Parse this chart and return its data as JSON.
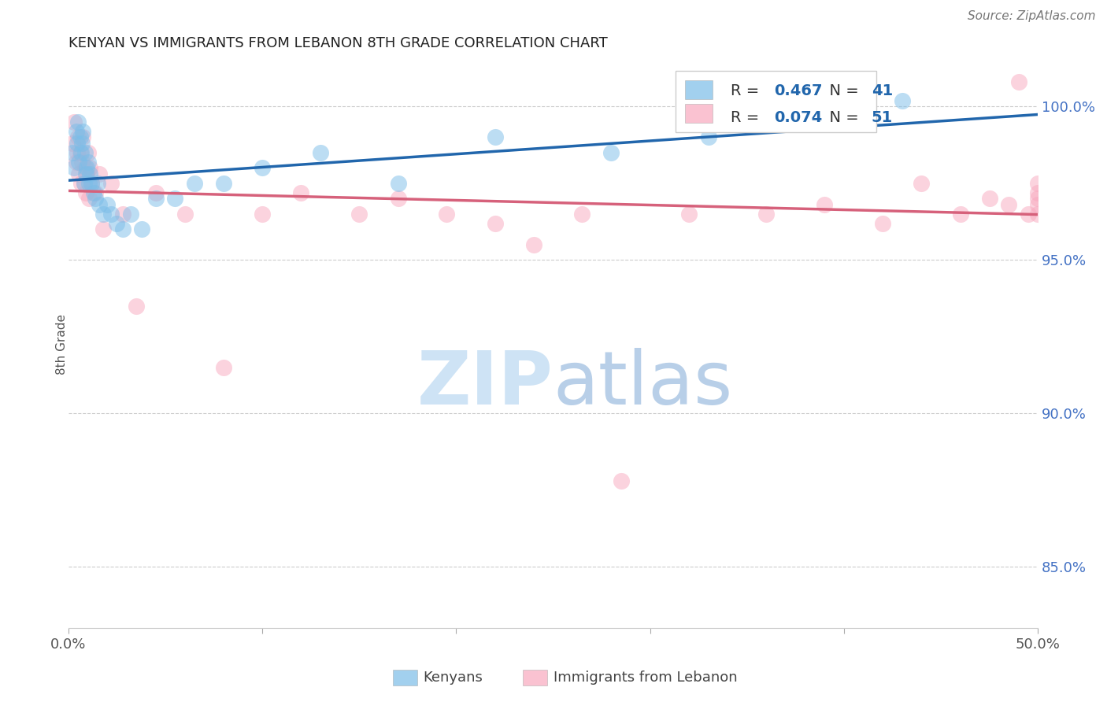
{
  "title": "KENYAN VS IMMIGRANTS FROM LEBANON 8TH GRADE CORRELATION CHART",
  "source": "Source: ZipAtlas.com",
  "ylabel": "8th Grade",
  "xlim": [
    0.0,
    50.0
  ],
  "ylim": [
    83.0,
    101.5
  ],
  "yticks": [
    85.0,
    90.0,
    95.0,
    100.0
  ],
  "ytick_labels": [
    "85.0%",
    "90.0%",
    "95.0%",
    "100.0%"
  ],
  "xticks": [
    0.0,
    10.0,
    20.0,
    30.0,
    40.0,
    50.0
  ],
  "xtick_labels": [
    "0.0%",
    "",
    "",
    "",
    "",
    "50.0%"
  ],
  "R_blue": "0.467",
  "N_blue": "41",
  "R_pink": "0.074",
  "N_pink": "51",
  "blue_scatter": "#7bbde8",
  "pink_scatter": "#f8a8be",
  "blue_line": "#2166ac",
  "pink_line": "#d6617b",
  "watermark_color": "#cee3f5",
  "kenyan_x": [
    0.2,
    0.3,
    0.4,
    0.45,
    0.5,
    0.55,
    0.6,
    0.65,
    0.7,
    0.75,
    0.8,
    0.85,
    0.9,
    0.95,
    1.0,
    1.05,
    1.1,
    1.2,
    1.3,
    1.4,
    1.5,
    1.6,
    1.8,
    2.0,
    2.2,
    2.5,
    2.8,
    3.2,
    3.8,
    4.5,
    5.5,
    6.5,
    8.0,
    10.0,
    13.0,
    17.0,
    22.0,
    28.0,
    33.0,
    38.0,
    43.0
  ],
  "kenyan_y": [
    98.5,
    98.0,
    99.2,
    98.8,
    99.5,
    98.2,
    99.0,
    98.5,
    98.8,
    99.2,
    97.5,
    98.5,
    97.8,
    98.0,
    98.2,
    97.5,
    97.8,
    97.5,
    97.2,
    97.0,
    97.5,
    96.8,
    96.5,
    96.8,
    96.5,
    96.2,
    96.0,
    96.5,
    96.0,
    97.0,
    97.0,
    97.5,
    97.5,
    98.0,
    98.5,
    97.5,
    99.0,
    98.5,
    99.0,
    99.5,
    100.2
  ],
  "lebanon_x": [
    0.2,
    0.3,
    0.4,
    0.45,
    0.5,
    0.55,
    0.6,
    0.65,
    0.7,
    0.75,
    0.8,
    0.85,
    0.9,
    0.95,
    1.0,
    1.05,
    1.1,
    1.2,
    1.4,
    1.6,
    1.8,
    2.2,
    2.8,
    3.5,
    4.5,
    6.0,
    8.0,
    10.0,
    12.0,
    15.0,
    17.0,
    19.5,
    22.0,
    24.0,
    26.5,
    28.5,
    32.0,
    36.0,
    39.0,
    42.0,
    44.0,
    46.0,
    47.5,
    48.5,
    49.0,
    49.5,
    50.0,
    50.0,
    50.0,
    50.0,
    50.0
  ],
  "lebanon_y": [
    98.8,
    99.5,
    98.2,
    98.5,
    99.0,
    97.8,
    98.5,
    97.5,
    98.2,
    99.0,
    97.5,
    98.0,
    97.2,
    97.8,
    98.5,
    97.0,
    98.0,
    97.5,
    97.2,
    97.8,
    96.0,
    97.5,
    96.5,
    93.5,
    97.2,
    96.5,
    91.5,
    96.5,
    97.2,
    96.5,
    97.0,
    96.5,
    96.2,
    95.5,
    96.5,
    87.8,
    96.5,
    96.5,
    96.8,
    96.2,
    97.5,
    96.5,
    97.0,
    96.8,
    100.8,
    96.5,
    96.8,
    97.0,
    96.5,
    97.2,
    97.5
  ]
}
